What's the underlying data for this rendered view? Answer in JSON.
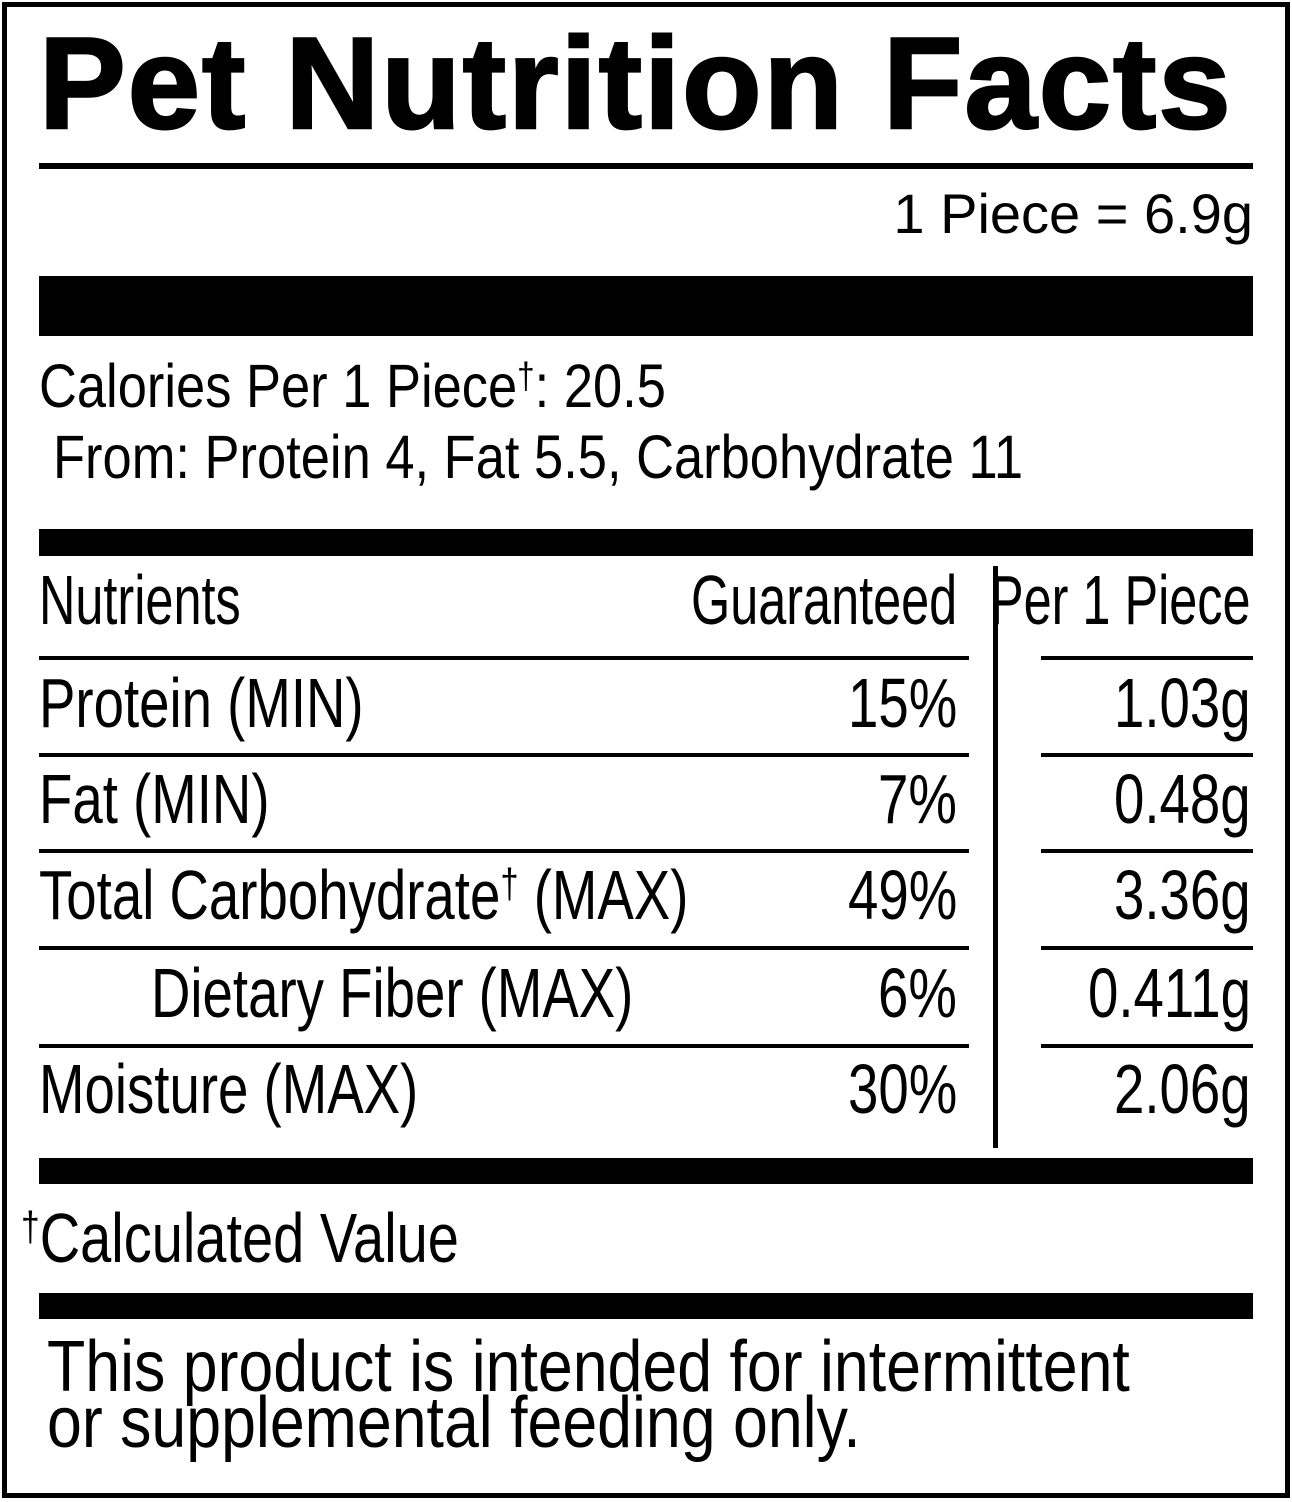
{
  "label": {
    "title": "Pet Nutrition Facts",
    "serving_size": "1 Piece = 6.9g",
    "calories": {
      "line1_pre": "Calories Per 1 Piece",
      "line1_sup": "†",
      "line1_post": ": 20.5",
      "line2": "From: Protein 4, Fat 5.5, Carbohydrate 11"
    },
    "table": {
      "header": {
        "nutrients": "Nutrients",
        "guaranteed": "Guaranteed",
        "per_piece": "Per 1 Piece"
      },
      "rows": [
        {
          "name": "Protein",
          "sup": "",
          "suffix": " (MIN)",
          "guaranteed": "15%",
          "per_piece": "1.03g"
        },
        {
          "name": "Fat",
          "sup": "",
          "suffix": " (MIN)",
          "guaranteed": "7%",
          "per_piece": "0.48g"
        },
        {
          "name": "Total Carbohydrate",
          "sup": "†",
          "suffix": " (MAX)",
          "guaranteed": "49%",
          "per_piece": "3.36g"
        },
        {
          "name": "Dietary Fiber",
          "sup": "",
          "suffix": " (MAX)",
          "guaranteed": "6%",
          "per_piece": "0.411g"
        },
        {
          "name": "Moisture",
          "sup": "",
          "suffix": " (MAX)",
          "guaranteed": "30%",
          "per_piece": "2.06g"
        }
      ]
    },
    "footnote": {
      "sup": "†",
      "text": "Calculated Value"
    },
    "disclaimer": "This product is intended for intermittent or supplemental feeding only.",
    "colors": {
      "ink": "#000000",
      "background": "#ffffff"
    }
  }
}
